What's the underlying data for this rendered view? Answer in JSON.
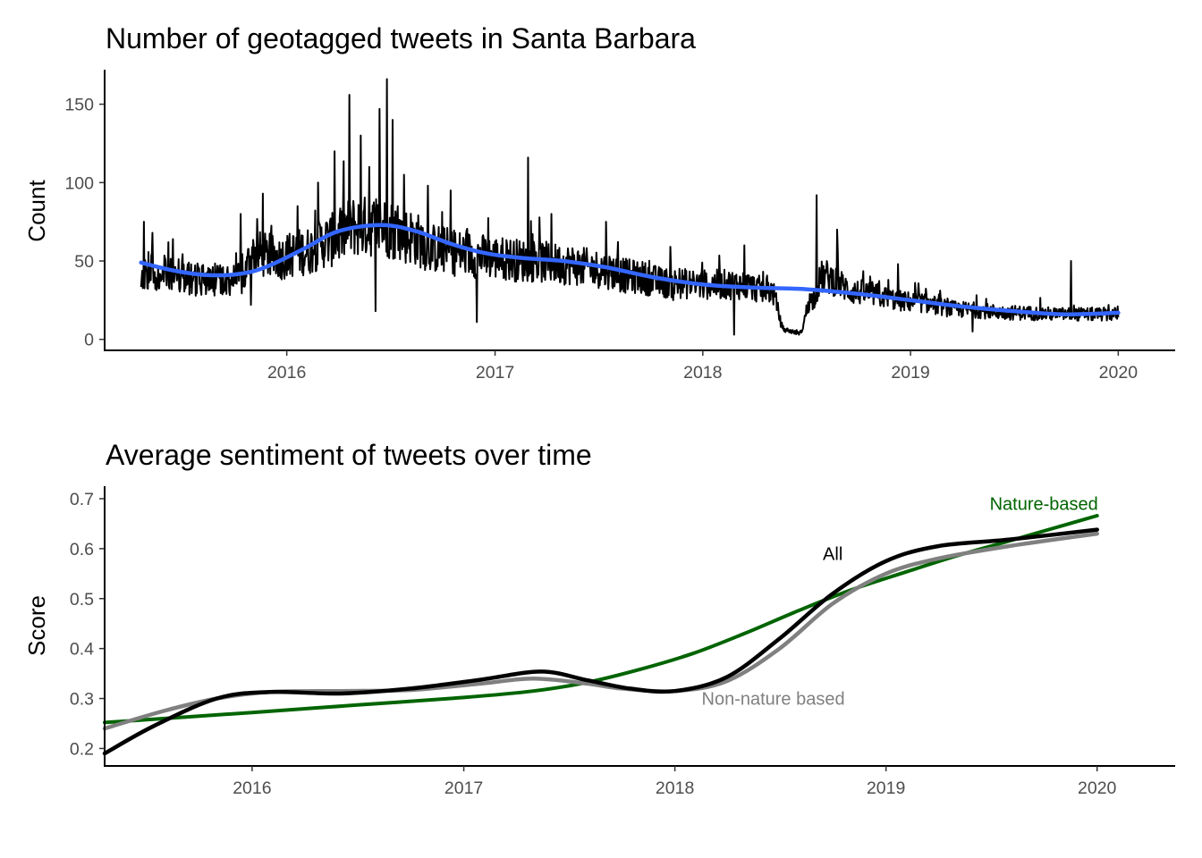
{
  "chart_data": [
    {
      "type": "line",
      "title": "Number of geotagged tweets in Santa Barbara",
      "ylabel": "Count",
      "xlabel": "",
      "x_axis": {
        "type": "date",
        "range": [
          "2015-02-15",
          "2020-04-10"
        ],
        "ticks": [
          "2016",
          "2017",
          "2018",
          "2019",
          "2020"
        ]
      },
      "ylim": [
        -7,
        172
      ],
      "y_ticks": [
        0,
        50,
        100,
        150
      ],
      "grid": false,
      "series": [
        {
          "kind": "daily",
          "color": "#000000",
          "date_range": [
            "2015-04-20",
            "2020-01-01"
          ],
          "anchors": [
            [
              "2015-04-20",
              44
            ],
            [
              "2015-06-01",
              43
            ],
            [
              "2015-08-01",
              38
            ],
            [
              "2015-10-15",
              38
            ],
            [
              "2015-11-01",
              55
            ],
            [
              "2015-12-15",
              52
            ],
            [
              "2016-02-01",
              56
            ],
            [
              "2016-03-15",
              63
            ],
            [
              "2016-05-01",
              72
            ],
            [
              "2016-06-15",
              72
            ],
            [
              "2016-08-01",
              66
            ],
            [
              "2016-09-15",
              58
            ],
            [
              "2016-11-01",
              55
            ],
            [
              "2017-01-01",
              52
            ],
            [
              "2017-03-01",
              50
            ],
            [
              "2017-05-01",
              48
            ],
            [
              "2017-07-01",
              45
            ],
            [
              "2017-09-01",
              40
            ],
            [
              "2017-11-01",
              36
            ],
            [
              "2018-01-01",
              35
            ],
            [
              "2018-03-01",
              35
            ],
            [
              "2018-05-01",
              31
            ],
            [
              "2018-05-25",
              6
            ],
            [
              "2018-06-20",
              4
            ],
            [
              "2018-07-10",
              25
            ],
            [
              "2018-08-01",
              40
            ],
            [
              "2018-10-01",
              30
            ],
            [
              "2019-01-01",
              24
            ],
            [
              "2019-04-01",
              19
            ],
            [
              "2019-07-01",
              17
            ],
            [
              "2019-10-01",
              16
            ],
            [
              "2020-01-01",
              16
            ]
          ],
          "spikes": [
            [
              "2015-04-25",
              75
            ],
            [
              "2015-05-10",
              68
            ],
            [
              "2015-06-15",
              64
            ],
            [
              "2015-10-12",
              80
            ],
            [
              "2015-10-30",
              22
            ],
            [
              "2015-11-20",
              93
            ],
            [
              "2016-01-20",
              85
            ],
            [
              "2016-02-25",
              100
            ],
            [
              "2016-03-25",
              120
            ],
            [
              "2016-04-20",
              156
            ],
            [
              "2016-05-10",
              130
            ],
            [
              "2016-05-25",
              110
            ],
            [
              "2016-06-12",
              147
            ],
            [
              "2016-06-25",
              166
            ],
            [
              "2016-07-05",
              140
            ],
            [
              "2016-06-05",
              18
            ],
            [
              "2016-07-25",
              105
            ],
            [
              "2016-09-05",
              98
            ],
            [
              "2016-10-15",
              95
            ],
            [
              "2016-11-30",
              11
            ],
            [
              "2017-02-28",
              116
            ],
            [
              "2017-04-10",
              80
            ],
            [
              "2017-07-15",
              75
            ],
            [
              "2017-11-10",
              25
            ],
            [
              "2018-02-25",
              3
            ],
            [
              "2018-03-15",
              60
            ],
            [
              "2018-07-20",
              92
            ],
            [
              "2018-08-25",
              70
            ],
            [
              "2018-12-10",
              48
            ],
            [
              "2019-04-20",
              5
            ],
            [
              "2019-10-10",
              50
            ],
            [
              "2019-12-15",
              22
            ]
          ]
        },
        {
          "kind": "smooth",
          "color": "#3366ff",
          "points": [
            [
              "2015-04-20",
              49
            ],
            [
              "2015-06-15",
              44
            ],
            [
              "2015-08-15",
              41
            ],
            [
              "2015-10-15",
              42
            ],
            [
              "2015-12-01",
              47
            ],
            [
              "2016-02-01",
              58
            ],
            [
              "2016-04-01",
              69
            ],
            [
              "2016-06-15",
              73
            ],
            [
              "2016-08-15",
              69
            ],
            [
              "2016-10-15",
              61
            ],
            [
              "2016-12-15",
              55
            ],
            [
              "2017-02-15",
              52
            ],
            [
              "2017-05-01",
              50
            ],
            [
              "2017-07-15",
              46
            ],
            [
              "2017-10-01",
              40
            ],
            [
              "2018-01-01",
              35
            ],
            [
              "2018-04-01",
              33
            ],
            [
              "2018-07-01",
              32
            ],
            [
              "2018-10-01",
              29
            ],
            [
              "2019-01-01",
              25
            ],
            [
              "2019-04-01",
              21
            ],
            [
              "2019-07-01",
              18
            ],
            [
              "2019-10-01",
              16
            ],
            [
              "2020-01-01",
              17
            ]
          ]
        }
      ]
    },
    {
      "type": "line",
      "title": "Average sentiment of tweets over time",
      "ylabel": "Score",
      "xlabel": "",
      "x_axis": {
        "type": "date",
        "range": [
          "2015-04-21",
          "2020-05-15"
        ],
        "ticks": [
          "2016",
          "2017",
          "2018",
          "2019",
          "2020"
        ]
      },
      "ylim": [
        0.165,
        0.725
      ],
      "y_ticks": [
        0.2,
        0.3,
        0.4,
        0.5,
        0.6,
        0.7
      ],
      "grid": false,
      "series": [
        {
          "name": "Nature-based",
          "color": "#006400",
          "points": [
            [
              "2015-04-21",
              0.252
            ],
            [
              "2016-01-01",
              0.272
            ],
            [
              "2016-07-01",
              0.287
            ],
            [
              "2017-01-01",
              0.302
            ],
            [
              "2017-05-01",
              0.315
            ],
            [
              "2017-08-01",
              0.332
            ],
            [
              "2017-11-01",
              0.358
            ],
            [
              "2018-02-01",
              0.39
            ],
            [
              "2018-05-01",
              0.43
            ],
            [
              "2018-08-01",
              0.475
            ],
            [
              "2018-11-01",
              0.517
            ],
            [
              "2019-02-01",
              0.552
            ],
            [
              "2019-05-01",
              0.585
            ],
            [
              "2019-08-01",
              0.615
            ],
            [
              "2019-10-15",
              0.64
            ],
            [
              "2020-01-01",
              0.666
            ]
          ]
        },
        {
          "name": "Non-nature based",
          "color": "#808080",
          "points": [
            [
              "2015-04-21",
              0.24
            ],
            [
              "2015-08-01",
              0.275
            ],
            [
              "2015-11-01",
              0.3
            ],
            [
              "2016-02-01",
              0.313
            ],
            [
              "2016-06-01",
              0.315
            ],
            [
              "2016-10-01",
              0.317
            ],
            [
              "2017-02-01",
              0.33
            ],
            [
              "2017-05-01",
              0.34
            ],
            [
              "2017-08-01",
              0.33
            ],
            [
              "2017-10-01",
              0.32
            ],
            [
              "2018-01-01",
              0.315
            ],
            [
              "2018-04-01",
              0.335
            ],
            [
              "2018-07-01",
              0.4
            ],
            [
              "2018-10-01",
              0.49
            ],
            [
              "2019-01-01",
              0.55
            ],
            [
              "2019-04-01",
              0.58
            ],
            [
              "2019-08-01",
              0.605
            ],
            [
              "2020-01-01",
              0.63
            ]
          ]
        },
        {
          "name": "All",
          "color": "#000000",
          "points": [
            [
              "2015-04-21",
              0.19
            ],
            [
              "2015-07-15",
              0.245
            ],
            [
              "2015-11-01",
              0.3
            ],
            [
              "2016-02-01",
              0.313
            ],
            [
              "2016-06-01",
              0.31
            ],
            [
              "2016-10-01",
              0.32
            ],
            [
              "2017-02-01",
              0.338
            ],
            [
              "2017-05-15",
              0.354
            ],
            [
              "2017-08-01",
              0.337
            ],
            [
              "2017-10-15",
              0.32
            ],
            [
              "2018-01-01",
              0.315
            ],
            [
              "2018-04-01",
              0.343
            ],
            [
              "2018-07-01",
              0.42
            ],
            [
              "2018-10-01",
              0.51
            ],
            [
              "2019-01-01",
              0.575
            ],
            [
              "2019-04-01",
              0.605
            ],
            [
              "2019-08-01",
              0.618
            ],
            [
              "2020-01-01",
              0.638
            ]
          ]
        }
      ],
      "labels": [
        {
          "text": "Nature-based",
          "x": "2019-10-01",
          "y": 0.69,
          "color": "#006400"
        },
        {
          "text": "All",
          "x": "2018-10-01",
          "y": 0.59,
          "color": "#000000"
        },
        {
          "text": "Non-nature based",
          "x": "2018-06-20",
          "y": 0.3,
          "color": "#808080"
        }
      ]
    }
  ]
}
